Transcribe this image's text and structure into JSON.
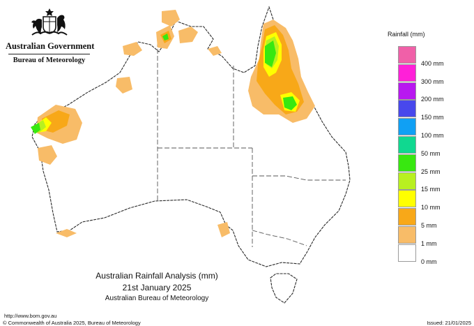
{
  "branding": {
    "government": "Australian Government",
    "bureau": "Bureau of Meteorology"
  },
  "legend": {
    "title": "Rainfall (mm)",
    "items": [
      {
        "label": "",
        "color": "#f060a8"
      },
      {
        "label": "400 mm",
        "color": "#ff20d8"
      },
      {
        "label": "300 mm",
        "color": "#b818f0"
      },
      {
        "label": "200 mm",
        "color": "#4848ec"
      },
      {
        "label": "150 mm",
        "color": "#10a0f4"
      },
      {
        "label": "100 mm",
        "color": "#10d890"
      },
      {
        "label": "50 mm",
        "color": "#38e810"
      },
      {
        "label": "25 mm",
        "color": "#b8f020"
      },
      {
        "label": "15 mm",
        "color": "#ffff00"
      },
      {
        "label": "10 mm",
        "color": "#f8a818"
      },
      {
        "label": "5 mm",
        "color": "#f8bc68"
      },
      {
        "label": "1 mm",
        "color": "#ffffff"
      },
      {
        "label": "0 mm",
        "color": ""
      }
    ]
  },
  "map": {
    "title": "Australian Rainfall Analysis (mm)",
    "date": "21st January 2025",
    "agency": "Australian Bureau of Meteorology"
  },
  "footer": {
    "url": "http://www.bom.gov.au",
    "copyright": "© Commonwealth of Australia 2025, Bureau of Meteorology",
    "issued": "Issued: 21/01/2025"
  }
}
